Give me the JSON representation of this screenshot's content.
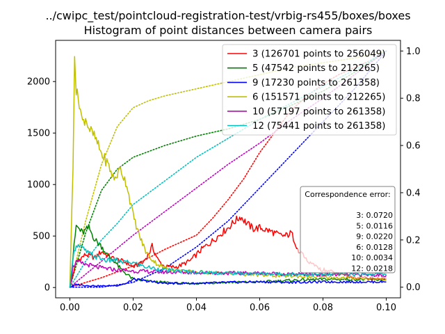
{
  "chart_data": {
    "type": "line",
    "title": "../cwipc_test/pointcloud-registration-test/vrbig-rs455/boxes/boxes",
    "subtitle": "Histogram of point distances between camera pairs",
    "xlim": [
      -0.0045,
      0.1045
    ],
    "ylim_left": [
      -100,
      2400
    ],
    "ylim_right": [
      -0.045,
      1.045
    ],
    "x_ticks": [
      "0.00",
      "0.02",
      "0.04",
      "0.06",
      "0.08",
      "0.10"
    ],
    "y_ticks_left": [
      "0",
      "500",
      "1000",
      "1500",
      "2000"
    ],
    "y_ticks_right": [
      "0.0",
      "0.2",
      "0.4",
      "0.6",
      "0.8",
      "1.0"
    ],
    "legend_position": "top-right",
    "series": [
      {
        "name": "3 (126701 points to 256049)",
        "color": "#ff0000",
        "histogram": [
          [
            0.0,
            0
          ],
          [
            0.002,
            250
          ],
          [
            0.005,
            320
          ],
          [
            0.008,
            290
          ],
          [
            0.01,
            350
          ],
          [
            0.013,
            290
          ],
          [
            0.016,
            260
          ],
          [
            0.018,
            240
          ],
          [
            0.02,
            200
          ],
          [
            0.023,
            240
          ],
          [
            0.025,
            330
          ],
          [
            0.026,
            400
          ],
          [
            0.028,
            260
          ],
          [
            0.03,
            200
          ],
          [
            0.034,
            200
          ],
          [
            0.038,
            260
          ],
          [
            0.042,
            380
          ],
          [
            0.045,
            450
          ],
          [
            0.048,
            530
          ],
          [
            0.05,
            580
          ],
          [
            0.052,
            640
          ],
          [
            0.054,
            690
          ],
          [
            0.056,
            620
          ],
          [
            0.058,
            570
          ],
          [
            0.06,
            580
          ],
          [
            0.062,
            560
          ],
          [
            0.064,
            540
          ],
          [
            0.066,
            510
          ],
          [
            0.068,
            500
          ],
          [
            0.07,
            530
          ],
          [
            0.072,
            380
          ]
        ],
        "histogram_tail": [
          [
            0.072,
            380
          ],
          [
            0.075,
            250
          ],
          [
            0.078,
            200
          ],
          [
            0.08,
            170
          ],
          [
            0.083,
            150
          ],
          [
            0.085,
            120
          ],
          [
            0.088,
            110
          ],
          [
            0.09,
            100
          ],
          [
            0.094,
            90
          ],
          [
            0.097,
            85
          ],
          [
            0.1,
            90
          ]
        ],
        "cumulative": [
          [
            0.0,
            0
          ],
          [
            0.01,
            0.04
          ],
          [
            0.02,
            0.09
          ],
          [
            0.03,
            0.16
          ],
          [
            0.04,
            0.22
          ],
          [
            0.045,
            0.29
          ],
          [
            0.05,
            0.37
          ],
          [
            0.055,
            0.46
          ],
          [
            0.06,
            0.57
          ],
          [
            0.065,
            0.66
          ],
          [
            0.07,
            0.75
          ],
          [
            0.075,
            0.81
          ],
          [
            0.08,
            0.86
          ],
          [
            0.085,
            0.9
          ],
          [
            0.09,
            0.93
          ],
          [
            0.095,
            0.96
          ],
          [
            0.1,
            1.0
          ]
        ]
      },
      {
        "name": "5 (47542 points to 212265)",
        "color": "#008000",
        "histogram": [
          [
            0.0,
            0
          ],
          [
            0.001,
            300
          ],
          [
            0.002,
            600
          ],
          [
            0.004,
            530
          ],
          [
            0.006,
            580
          ],
          [
            0.008,
            460
          ],
          [
            0.01,
            400
          ],
          [
            0.012,
            310
          ],
          [
            0.014,
            260
          ],
          [
            0.016,
            180
          ],
          [
            0.018,
            130
          ],
          [
            0.02,
            80
          ],
          [
            0.025,
            60
          ],
          [
            0.03,
            50
          ],
          [
            0.035,
            40
          ],
          [
            0.04,
            40
          ],
          [
            0.05,
            50
          ],
          [
            0.06,
            55
          ],
          [
            0.07,
            70
          ],
          [
            0.08,
            80
          ],
          [
            0.09,
            80
          ],
          [
            0.1,
            75
          ]
        ],
        "cumulative": [
          [
            0.0,
            0
          ],
          [
            0.005,
            0.23
          ],
          [
            0.01,
            0.41
          ],
          [
            0.015,
            0.5
          ],
          [
            0.02,
            0.55
          ],
          [
            0.03,
            0.6
          ],
          [
            0.04,
            0.64
          ],
          [
            0.05,
            0.67
          ],
          [
            0.06,
            0.71
          ],
          [
            0.07,
            0.77
          ],
          [
            0.08,
            0.83
          ],
          [
            0.09,
            0.91
          ],
          [
            0.1,
            1.0
          ]
        ]
      },
      {
        "name": "9 (17230 points to 261358)",
        "color": "#0000ff",
        "histogram": [
          [
            0.0,
            0
          ],
          [
            0.002,
            30
          ],
          [
            0.005,
            20
          ],
          [
            0.01,
            15
          ],
          [
            0.015,
            20
          ],
          [
            0.018,
            40
          ],
          [
            0.02,
            80
          ],
          [
            0.025,
            60
          ],
          [
            0.03,
            40
          ],
          [
            0.04,
            40
          ],
          [
            0.05,
            50
          ],
          [
            0.06,
            55
          ],
          [
            0.07,
            50
          ],
          [
            0.08,
            55
          ],
          [
            0.09,
            55
          ],
          [
            0.1,
            55
          ]
        ],
        "cumulative": [
          [
            0.0,
            0
          ],
          [
            0.01,
            0.0
          ],
          [
            0.02,
            0.02
          ],
          [
            0.03,
            0.08
          ],
          [
            0.04,
            0.17
          ],
          [
            0.05,
            0.28
          ],
          [
            0.06,
            0.42
          ],
          [
            0.07,
            0.56
          ],
          [
            0.08,
            0.7
          ],
          [
            0.09,
            0.84
          ],
          [
            0.1,
            1.0
          ]
        ]
      },
      {
        "name": "6 (151571 points to 212265)",
        "color": "#bfbf00",
        "histogram": [
          [
            0.0,
            0
          ],
          [
            0.001,
            1200
          ],
          [
            0.0015,
            2300
          ],
          [
            0.002,
            1900
          ],
          [
            0.003,
            1800
          ],
          [
            0.004,
            1600
          ],
          [
            0.005,
            1650
          ],
          [
            0.006,
            1550
          ],
          [
            0.008,
            1450
          ],
          [
            0.01,
            1300
          ],
          [
            0.012,
            1200
          ],
          [
            0.014,
            1050
          ],
          [
            0.016,
            1150
          ],
          [
            0.018,
            1000
          ],
          [
            0.02,
            700
          ],
          [
            0.022,
            500
          ],
          [
            0.024,
            350
          ],
          [
            0.026,
            270
          ],
          [
            0.028,
            220
          ],
          [
            0.03,
            190
          ],
          [
            0.035,
            160
          ],
          [
            0.04,
            150
          ],
          [
            0.05,
            140
          ],
          [
            0.06,
            120
          ],
          [
            0.07,
            110
          ],
          [
            0.08,
            100
          ],
          [
            0.09,
            90
          ],
          [
            0.1,
            80
          ]
        ],
        "cumulative": [
          [
            0.0,
            0
          ],
          [
            0.005,
            0.28
          ],
          [
            0.01,
            0.52
          ],
          [
            0.015,
            0.68
          ],
          [
            0.02,
            0.76
          ],
          [
            0.025,
            0.79
          ],
          [
            0.03,
            0.81
          ],
          [
            0.04,
            0.84
          ],
          [
            0.05,
            0.87
          ],
          [
            0.06,
            0.9
          ],
          [
            0.07,
            0.93
          ],
          [
            0.08,
            0.95
          ],
          [
            0.09,
            0.97
          ],
          [
            0.1,
            1.0
          ]
        ]
      },
      {
        "name": "10 (57197 points to 261358)",
        "color": "#bf00bf",
        "histogram": [
          [
            0.0,
            0
          ],
          [
            0.001,
            200
          ],
          [
            0.002,
            250
          ],
          [
            0.004,
            230
          ],
          [
            0.006,
            220
          ],
          [
            0.008,
            200
          ],
          [
            0.01,
            190
          ],
          [
            0.015,
            170
          ],
          [
            0.02,
            160
          ],
          [
            0.03,
            150
          ],
          [
            0.04,
            145
          ],
          [
            0.05,
            140
          ],
          [
            0.06,
            140
          ],
          [
            0.07,
            130
          ],
          [
            0.08,
            125
          ],
          [
            0.09,
            125
          ],
          [
            0.1,
            120
          ]
        ],
        "cumulative": [
          [
            0.0,
            0
          ],
          [
            0.01,
            0.11
          ],
          [
            0.02,
            0.22
          ],
          [
            0.03,
            0.32
          ],
          [
            0.04,
            0.42
          ],
          [
            0.05,
            0.52
          ],
          [
            0.06,
            0.61
          ],
          [
            0.07,
            0.71
          ],
          [
            0.08,
            0.8
          ],
          [
            0.09,
            0.9
          ],
          [
            0.1,
            1.0
          ]
        ]
      },
      {
        "name": "12 (75441 points to 261358)",
        "color": "#00bfbf",
        "histogram": [
          [
            0.0,
            0
          ],
          [
            0.001,
            300
          ],
          [
            0.002,
            420
          ],
          [
            0.004,
            380
          ],
          [
            0.006,
            330
          ],
          [
            0.008,
            300
          ],
          [
            0.01,
            280
          ],
          [
            0.012,
            260
          ],
          [
            0.014,
            270
          ],
          [
            0.016,
            250
          ],
          [
            0.02,
            240
          ],
          [
            0.024,
            200
          ],
          [
            0.03,
            170
          ],
          [
            0.04,
            150
          ],
          [
            0.05,
            140
          ],
          [
            0.06,
            135
          ],
          [
            0.07,
            130
          ],
          [
            0.08,
            125
          ],
          [
            0.09,
            130
          ],
          [
            0.1,
            130
          ]
        ],
        "cumulative": [
          [
            0.0,
            0
          ],
          [
            0.005,
            0.11
          ],
          [
            0.01,
            0.2
          ],
          [
            0.015,
            0.27
          ],
          [
            0.02,
            0.35
          ],
          [
            0.03,
            0.45
          ],
          [
            0.04,
            0.55
          ],
          [
            0.05,
            0.63
          ],
          [
            0.06,
            0.71
          ],
          [
            0.07,
            0.78
          ],
          [
            0.08,
            0.85
          ],
          [
            0.09,
            0.92
          ],
          [
            0.1,
            1.0
          ]
        ]
      }
    ],
    "annotation": {
      "title": "Correspondence error:",
      "rows": [
        "3: 0.0720",
        "5: 0.0116",
        "9: 0.0220",
        "6: 0.0128",
        "10: 0.0034",
        "12: 0.0218"
      ]
    }
  }
}
